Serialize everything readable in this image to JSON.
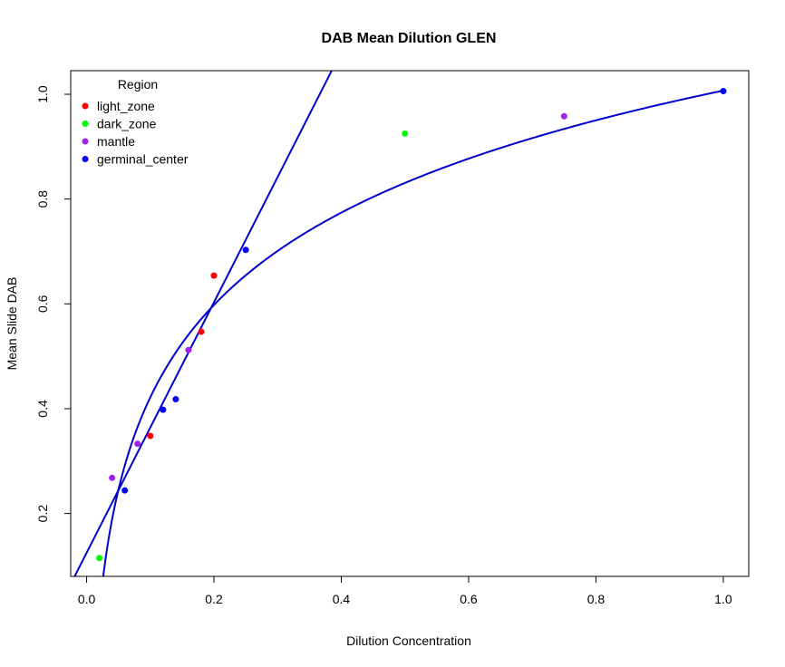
{
  "chart_data": {
    "type": "scatter",
    "title": "DAB Mean Dilution GLEN",
    "xlabel": "Dilution Concentration",
    "ylabel": "Mean Slide DAB",
    "xlim": [
      -0.025,
      1.04
    ],
    "ylim": [
      0.08,
      1.045
    ],
    "xticks": [
      0.0,
      0.2,
      0.4,
      0.6,
      0.8,
      1.0
    ],
    "yticks": [
      0.2,
      0.4,
      0.6,
      0.8,
      1.0
    ],
    "xtick_labels": [
      "0.0",
      "0.2",
      "0.4",
      "0.6",
      "0.8",
      "1.0"
    ],
    "ytick_labels": [
      "0.2",
      "0.4",
      "0.6",
      "0.8",
      "1.0"
    ],
    "grid": false,
    "legend": {
      "title": "Region",
      "position": "top-left",
      "entries": [
        "light_zone",
        "dark_zone",
        "mantle",
        "germinal_center"
      ]
    },
    "series": [
      {
        "name": "light_zone",
        "color": "#ff0000",
        "points": [
          {
            "x": 0.1,
            "y": 0.348
          },
          {
            "x": 0.18,
            "y": 0.547
          },
          {
            "x": 0.2,
            "y": 0.654
          }
        ]
      },
      {
        "name": "dark_zone",
        "color": "#00ff00",
        "points": [
          {
            "x": 0.02,
            "y": 0.115
          },
          {
            "x": 0.5,
            "y": 0.925
          }
        ]
      },
      {
        "name": "mantle",
        "color": "#a020f0",
        "points": [
          {
            "x": 0.04,
            "y": 0.268
          },
          {
            "x": 0.08,
            "y": 0.333
          },
          {
            "x": 0.16,
            "y": 0.512
          },
          {
            "x": 0.75,
            "y": 0.958
          }
        ]
      },
      {
        "name": "germinal_center",
        "color": "#0000ff",
        "points": [
          {
            "x": 0.06,
            "y": 0.244
          },
          {
            "x": 0.12,
            "y": 0.398
          },
          {
            "x": 0.14,
            "y": 0.418
          },
          {
            "x": 0.25,
            "y": 0.703
          },
          {
            "x": 1.0,
            "y": 1.006
          }
        ]
      }
    ],
    "fit_lines": [
      {
        "type": "linear",
        "color": "#0000cc",
        "intercept": 0.125,
        "slope": 2.39
      },
      {
        "type": "log",
        "color": "#0000cc",
        "intercept": 1.007,
        "coef": 0.2542
      }
    ]
  }
}
